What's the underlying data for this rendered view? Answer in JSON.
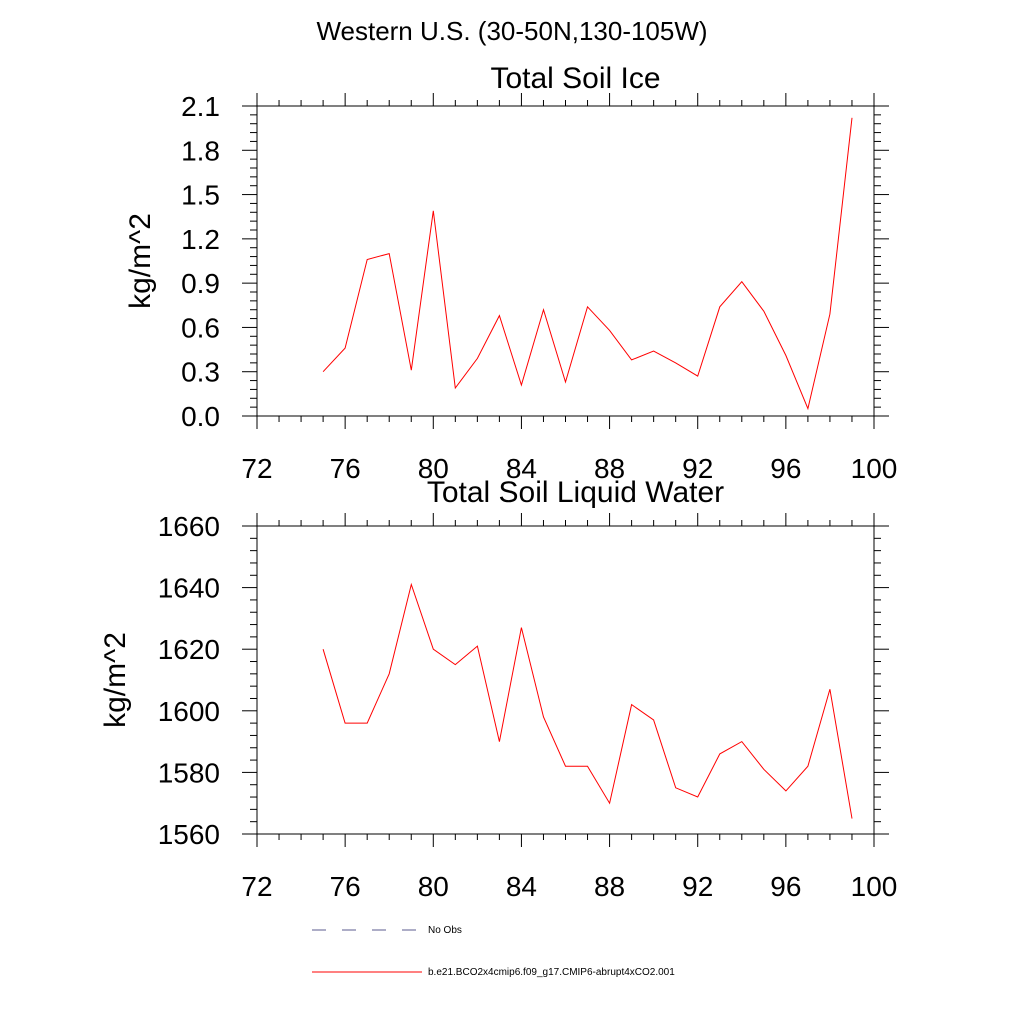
{
  "page": {
    "title": "Western U.S. (30-50N,130-105W)"
  },
  "chart_data": [
    {
      "type": "line",
      "title": "Total Soil Ice",
      "xlabel": "",
      "ylabel": "kg/m^2",
      "xlim": [
        72,
        100
      ],
      "ylim": [
        0,
        2.1
      ],
      "x_ticks": [
        72,
        76,
        80,
        84,
        88,
        92,
        96,
        100
      ],
      "x_tick_labels": [
        "72",
        "76",
        "80",
        "84",
        "88",
        "92",
        "96",
        "100"
      ],
      "y_ticks": [
        0,
        0.3,
        0.6,
        0.9,
        1.2,
        1.5,
        1.8,
        2.1
      ],
      "y_tick_labels": [
        "0.0",
        "0.3",
        "0.6",
        "0.9",
        "1.2",
        "1.5",
        "1.8",
        "2.1"
      ],
      "grid": false,
      "series": [
        {
          "name": "b.e21.BCO2x4cmip6.f09_g17.CMIP6-abrupt4xCO2.001",
          "color": "#ff0000",
          "x": [
            75,
            76,
            77,
            78,
            79,
            80,
            81,
            82,
            83,
            84,
            85,
            86,
            87,
            88,
            89,
            90,
            91,
            92,
            93,
            94,
            95,
            96,
            97,
            98,
            99
          ],
          "y": [
            0.3,
            0.46,
            1.06,
            1.1,
            0.31,
            1.39,
            0.19,
            0.39,
            0.68,
            0.21,
            0.72,
            0.23,
            0.74,
            0.58,
            0.38,
            0.44,
            0.36,
            0.27,
            0.74,
            0.91,
            0.71,
            0.41,
            0.05,
            0.69,
            2.02
          ]
        }
      ]
    },
    {
      "type": "line",
      "title": "Total Soil Liquid Water",
      "xlabel": "",
      "ylabel": "kg/m^2",
      "xlim": [
        72,
        100
      ],
      "ylim": [
        1560,
        1660
      ],
      "x_ticks": [
        72,
        76,
        80,
        84,
        88,
        92,
        96,
        100
      ],
      "x_tick_labels": [
        "72",
        "76",
        "80",
        "84",
        "88",
        "92",
        "96",
        "100"
      ],
      "y_ticks": [
        1560,
        1580,
        1600,
        1620,
        1640,
        1660
      ],
      "y_tick_labels": [
        "1560",
        "1580",
        "1600",
        "1620",
        "1640",
        "1660"
      ],
      "grid": false,
      "series": [
        {
          "name": "b.e21.BCO2x4cmip6.f09_g17.CMIP6-abrupt4xCO2.001",
          "color": "#ff0000",
          "x": [
            75,
            76,
            77,
            78,
            79,
            80,
            81,
            82,
            83,
            84,
            85,
            86,
            87,
            88,
            89,
            90,
            91,
            92,
            93,
            94,
            95,
            96,
            97,
            98,
            99
          ],
          "y": [
            1620,
            1596,
            1596,
            1612,
            1641,
            1620,
            1615,
            1621,
            1590,
            1627,
            1598,
            1582,
            1582,
            1570,
            1602,
            1597,
            1575,
            1572,
            1586,
            1590,
            1581,
            1574,
            1582,
            1607,
            1565
          ]
        }
      ]
    }
  ],
  "legend": {
    "placement": "bottom",
    "items": [
      {
        "label": "No Obs",
        "color": "#5b5b8f",
        "style": "dashed"
      },
      {
        "label": "b.e21.BCO2x4cmip6.f09_g17.CMIP6-abrupt4xCO2.001",
        "color": "#ff0000",
        "style": "solid"
      }
    ]
  }
}
